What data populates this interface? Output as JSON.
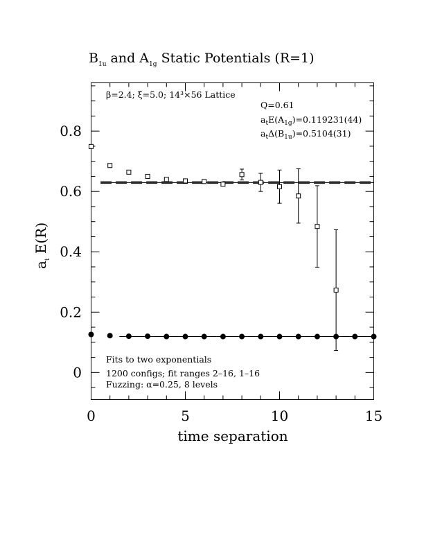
{
  "chart_data": {
    "type": "scatter",
    "title": {
      "part1": "B",
      "sub1": "1u",
      "part2": " and A",
      "sub2": "1g",
      "part3": " Static Potentials (R=1)"
    },
    "xlabel": "time separation",
    "ylabel": {
      "main": "a",
      "sub": "t",
      "rest": " E(R)"
    },
    "xlim": [
      0,
      15
    ],
    "ylim": [
      -0.09,
      0.96
    ],
    "x_ticks": [
      "0",
      "5",
      "10",
      "15"
    ],
    "y_ticks": [
      "0",
      "0.2",
      "0.4",
      "0.6",
      "0.8"
    ],
    "annotations": {
      "lattice": {
        "beta": "β=2.4; ",
        "xi": "ξ=5.0; ",
        "size": "14³×56 Lattice"
      },
      "q": "Q=0.61",
      "energy": {
        "a": "a",
        "t": "t",
        "e": "E(A",
        "g": "1g",
        "val": ")=0.119231(44)"
      },
      "gap": {
        "a": "a",
        "t": "t",
        "d": "Δ(B",
        "g": "1u",
        "val": ")=0.5104(31)"
      },
      "fits": "Fits to two exponentials",
      "configs": "1200 configs; fit ranges 2–16, 1–16",
      "fuzzing": "Fuzzing: α=0.25, 8 levels"
    },
    "series": [
      {
        "marker": "open-square",
        "x": [
          0,
          1,
          2,
          3,
          4,
          5,
          6,
          7,
          8,
          9,
          10,
          11,
          12,
          13
        ],
        "y": [
          0.749,
          0.686,
          0.664,
          0.65,
          0.64,
          0.635,
          0.633,
          0.624,
          0.656,
          0.63,
          0.616,
          0.585,
          0.484,
          0.273
        ],
        "err": [
          0.002,
          0.002,
          0.002,
          0.003,
          0.003,
          0.004,
          0.005,
          0.008,
          0.018,
          0.03,
          0.055,
          0.09,
          0.135,
          0.2
        ]
      },
      {
        "marker": "filled-circle",
        "x": [
          0,
          1,
          2,
          3,
          4,
          5,
          6,
          7,
          8,
          9,
          10,
          11,
          12,
          13,
          14,
          15
        ],
        "y": [
          0.126,
          0.122,
          0.12,
          0.12,
          0.119,
          0.119,
          0.119,
          0.119,
          0.119,
          0.119,
          0.119,
          0.119,
          0.119,
          0.119,
          0.119,
          0.119
        ]
      }
    ],
    "fit_lines": {
      "b1u_solid": {
        "x": [
          0.5,
          15
        ],
        "y": 0.6295
      },
      "b1u_dashed_upper": {
        "x": [
          0.5,
          15
        ],
        "y": 0.6325
      },
      "b1u_dashed_lower": {
        "x": [
          0.5,
          15
        ],
        "y": 0.6265
      },
      "a1g_solid": {
        "x": [
          1.5,
          15
        ],
        "y": 0.1192
      }
    }
  }
}
